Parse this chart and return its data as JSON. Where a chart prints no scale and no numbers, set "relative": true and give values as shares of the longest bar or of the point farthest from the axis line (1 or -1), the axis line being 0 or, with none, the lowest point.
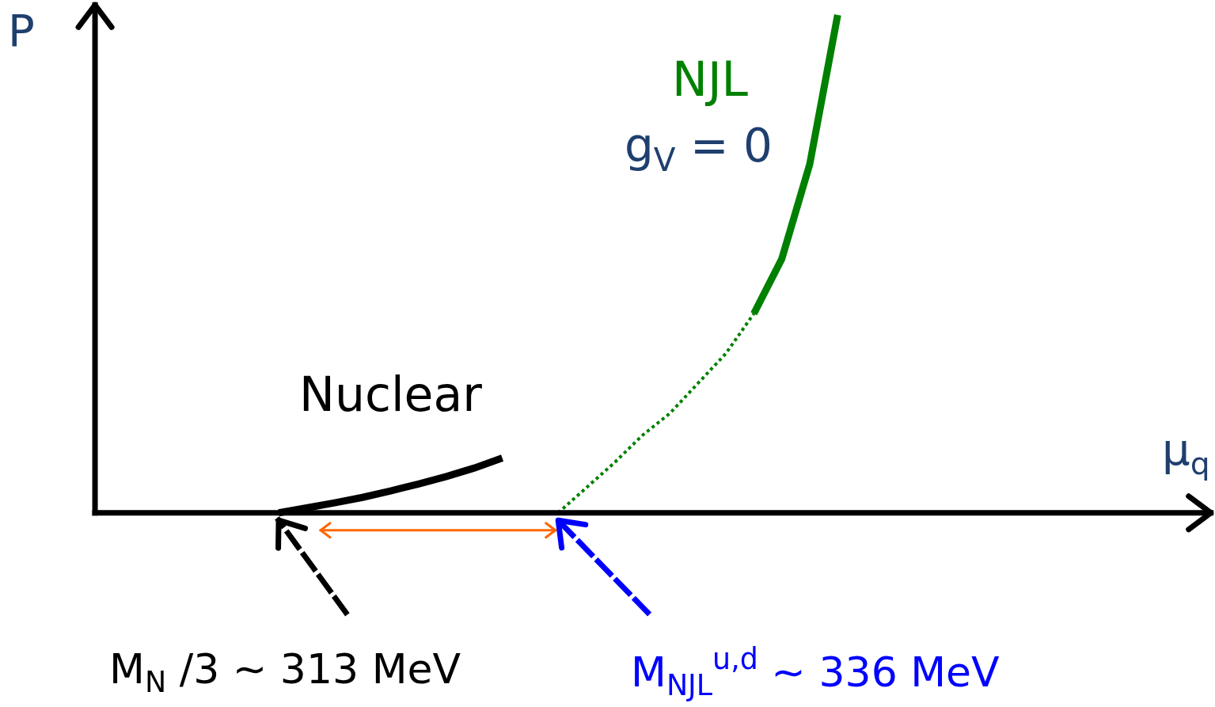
{
  "chart_data": {
    "type": "line",
    "relative": true,
    "xlabel": "μ$_{q}$",
    "ylabel": "P",
    "categories": [
      null,
      null,
      null,
      null,
      null,
      null,
      null,
      null,
      null,
      null,
      null,
      null,
      null,
      null,
      null,
      null,
      null,
      null,
      null,
      null,
      null,
      null,
      null,
      null,
      null,
      null,
      null,
      null,
      null,
      null,
      null,
      null,
      null,
      null,
      null,
      null,
      null,
      null,
      null,
      null
    ],
    "series": [
      {
        "name": "Nuclear",
        "color": "#000000",
        "line_style": "solid",
        "values": [
          null,
          null,
          null,
          null,
          null,
          null,
          0,
          0.01,
          0.02,
          0.031,
          0.044,
          0.058,
          0.073,
          0.09,
          0.11,
          null,
          null,
          null,
          null,
          null,
          null,
          null,
          null,
          null,
          null,
          null,
          null,
          null,
          null,
          null,
          null,
          null,
          null,
          null,
          null,
          null,
          null,
          null,
          null,
          null
        ]
      },
      {
        "color": "#008000",
        "line_style": "dotted",
        "values": [
          null,
          null,
          null,
          null,
          null,
          null,
          null,
          null,
          null,
          null,
          null,
          null,
          null,
          null,
          null,
          null,
          0,
          0.05,
          0.1,
          0.155,
          0.2,
          0.26,
          0.32,
          0.4,
          null,
          null,
          null,
          null,
          null,
          null,
          null,
          null,
          null,
          null,
          null,
          null,
          null,
          null,
          null,
          null
        ]
      },
      {
        "name": "NJL",
        "color": "#008000",
        "line_style": "solid",
        "values": [
          null,
          null,
          null,
          null,
          null,
          null,
          null,
          null,
          null,
          null,
          null,
          null,
          null,
          null,
          null,
          null,
          null,
          null,
          null,
          null,
          null,
          null,
          null,
          0.4,
          0.51,
          0.7,
          1,
          null,
          null,
          null,
          null,
          null,
          null,
          null,
          null,
          null,
          null,
          null,
          null,
          null
        ]
      }
    ],
    "annotations": [
      "M$_{N}$ /3 ∼ 313 MeV",
      "M$_{NJL}$$^{u,d}$ ∼ 336 MeV",
      "g$_{V}$ = 0"
    ]
  }
}
